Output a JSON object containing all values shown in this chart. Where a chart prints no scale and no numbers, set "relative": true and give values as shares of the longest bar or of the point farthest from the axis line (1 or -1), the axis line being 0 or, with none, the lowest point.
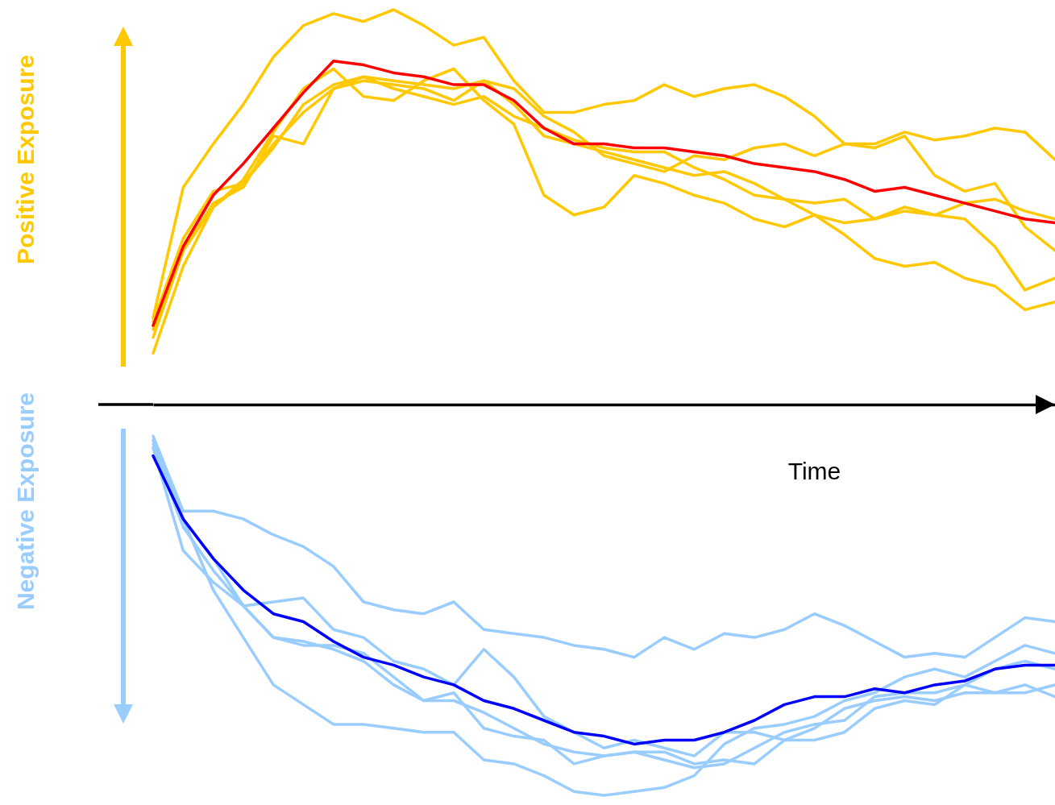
{
  "chart_data": {
    "type": "line",
    "relative": true,
    "xlabel": "Time",
    "annotations": [
      "Positive Exposure",
      "Negative Exposure"
    ],
    "grid": false,
    "marker": "none",
    "line_style": "solid",
    "categories": [
      null,
      null,
      null,
      null,
      null,
      null,
      null,
      null,
      null,
      null,
      null,
      null,
      null,
      null,
      null,
      null,
      null,
      null,
      null,
      null,
      null,
      null,
      null,
      null,
      null,
      null,
      null,
      null,
      null,
      null,
      null
    ],
    "series": [
      {
        "color": "#ffc800",
        "values": [
          0.22,
          0.55,
          0.66,
          0.76,
          0.88,
          0.96,
          0.99,
          0.97,
          1.0,
          0.96,
          0.91,
          0.93,
          0.82,
          0.74,
          0.74,
          0.76,
          0.77,
          0.81,
          0.78,
          0.8,
          0.81,
          0.78,
          0.73,
          0.66,
          0.66,
          0.69,
          0.67,
          0.68,
          0.7,
          0.69,
          0.62
        ]
      },
      {
        "color": "#ffc800",
        "values": [
          0.13,
          0.35,
          0.5,
          0.57,
          0.69,
          0.8,
          0.85,
          0.78,
          0.77,
          0.82,
          0.85,
          0.77,
          0.71,
          0.53,
          0.48,
          0.5,
          0.58,
          0.56,
          0.53,
          0.51,
          0.47,
          0.45,
          0.48,
          0.43,
          0.37,
          0.35,
          0.36,
          0.32,
          0.3,
          0.24,
          0.26
        ]
      },
      {
        "color": "#ffc800",
        "values": [
          0.21,
          0.42,
          0.54,
          0.56,
          0.66,
          0.74,
          0.8,
          0.82,
          0.81,
          0.8,
          0.77,
          0.82,
          0.8,
          0.73,
          0.69,
          0.63,
          0.61,
          0.59,
          0.63,
          0.62,
          0.65,
          0.66,
          0.63,
          0.66,
          0.65,
          0.68,
          0.58,
          0.54,
          0.56,
          0.45,
          0.39
        ]
      },
      {
        "color": "#ffc800",
        "values": [
          0.17,
          0.39,
          0.51,
          0.55,
          0.68,
          0.66,
          0.8,
          0.83,
          0.8,
          0.78,
          0.76,
          0.78,
          0.73,
          0.7,
          0.67,
          0.65,
          0.64,
          0.64,
          0.6,
          0.57,
          0.53,
          0.52,
          0.51,
          0.52,
          0.47,
          0.49,
          0.48,
          0.51,
          0.52,
          0.49,
          0.47
        ]
      },
      {
        "color": "#ffc800",
        "values": [
          0.19,
          0.39,
          0.5,
          0.56,
          0.65,
          0.76,
          0.81,
          0.83,
          0.82,
          0.81,
          0.8,
          0.82,
          0.76,
          0.68,
          0.66,
          0.64,
          0.62,
          0.6,
          0.58,
          0.59,
          0.56,
          0.52,
          0.48,
          0.46,
          0.47,
          0.5,
          0.48,
          0.47,
          0.4,
          0.29,
          0.32
        ]
      },
      {
        "color": "#ff0000",
        "values": [
          0.2,
          0.4,
          0.53,
          0.61,
          0.7,
          0.79,
          0.87,
          0.86,
          0.84,
          0.83,
          0.81,
          0.81,
          0.77,
          0.7,
          0.66,
          0.66,
          0.65,
          0.65,
          0.64,
          0.63,
          0.61,
          0.6,
          0.59,
          0.57,
          0.54,
          0.55,
          0.53,
          0.51,
          0.49,
          0.47,
          0.46
        ]
      },
      {
        "color": "#99ccff",
        "values": [
          -0.08,
          -0.27,
          -0.27,
          -0.29,
          -0.33,
          -0.36,
          -0.41,
          -0.5,
          -0.52,
          -0.53,
          -0.5,
          -0.57,
          -0.58,
          -0.59,
          -0.61,
          -0.62,
          -0.64,
          -0.59,
          -0.62,
          -0.58,
          -0.59,
          -0.57,
          -0.53,
          -0.56,
          -0.6,
          -0.64,
          -0.63,
          -0.64,
          -0.59,
          -0.54,
          -0.55
        ]
      },
      {
        "color": "#99ccff",
        "values": [
          -0.09,
          -0.29,
          -0.47,
          -0.59,
          -0.71,
          -0.76,
          -0.81,
          -0.81,
          -0.82,
          -0.83,
          -0.83,
          -0.9,
          -0.91,
          -0.94,
          -0.98,
          -0.99,
          -0.98,
          -0.97,
          -0.94,
          -0.86,
          -0.82,
          -0.81,
          -0.79,
          -0.75,
          -0.73,
          -0.69,
          -0.67,
          -0.69,
          -0.65,
          -0.61,
          -0.63
        ]
      },
      {
        "color": "#99ccff",
        "values": [
          -0.11,
          -0.37,
          -0.45,
          -0.51,
          -0.59,
          -0.6,
          -0.62,
          -0.65,
          -0.71,
          -0.75,
          -0.73,
          -0.82,
          -0.84,
          -0.85,
          -0.91,
          -0.89,
          -0.88,
          -0.9,
          -0.92,
          -0.91,
          -0.87,
          -0.83,
          -0.81,
          -0.8,
          -0.74,
          -0.73,
          -0.73,
          -0.71,
          -0.73,
          -0.71,
          -0.74
        ]
      },
      {
        "color": "#99ccff",
        "values": [
          -0.1,
          -0.29,
          -0.39,
          -0.51,
          -0.5,
          -0.49,
          -0.57,
          -0.59,
          -0.65,
          -0.67,
          -0.71,
          -0.62,
          -0.69,
          -0.79,
          -0.83,
          -0.87,
          -0.85,
          -0.87,
          -0.89,
          -0.83,
          -0.83,
          -0.85,
          -0.85,
          -0.83,
          -0.77,
          -0.75,
          -0.76,
          -0.71,
          -0.67,
          -0.65,
          -0.67
        ]
      },
      {
        "color": "#99ccff",
        "values": [
          -0.11,
          -0.31,
          -0.42,
          -0.51,
          -0.59,
          -0.61,
          -0.61,
          -0.63,
          -0.69,
          -0.75,
          -0.75,
          -0.78,
          -0.82,
          -0.86,
          -0.88,
          -0.89,
          -0.88,
          -0.88,
          -0.91,
          -0.9,
          -0.91,
          -0.85,
          -0.82,
          -0.77,
          -0.75,
          -0.74,
          -0.75,
          -0.73,
          -0.73,
          -0.73,
          -0.71
        ]
      },
      {
        "color": "#0000ff",
        "values": [
          -0.13,
          -0.29,
          -0.39,
          -0.47,
          -0.53,
          -0.55,
          -0.6,
          -0.64,
          -0.66,
          -0.69,
          -0.71,
          -0.75,
          -0.77,
          -0.8,
          -0.83,
          -0.84,
          -0.86,
          -0.85,
          -0.85,
          -0.83,
          -0.8,
          -0.76,
          -0.74,
          -0.74,
          -0.72,
          -0.73,
          -0.71,
          -0.7,
          -0.67,
          -0.66,
          -0.66
        ]
      }
    ]
  }
}
